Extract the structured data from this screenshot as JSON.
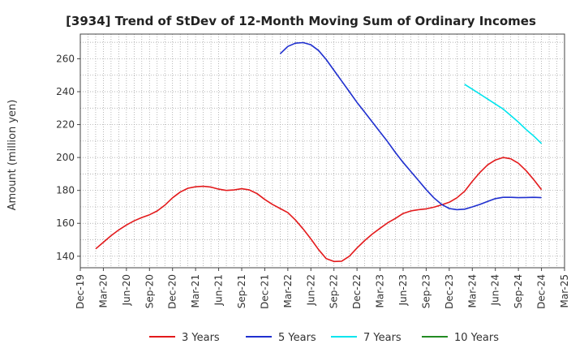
{
  "chart_data": {
    "type": "line",
    "title": "[3934]  Trend of StDev of 12-Month Moving Sum of Ordinary Incomes",
    "ylabel": "Amount (million yen)",
    "xlabel": "",
    "ylim": [
      133,
      275
    ],
    "yticks": [
      140,
      160,
      180,
      200,
      220,
      240,
      260
    ],
    "xlim": [
      "2019-12",
      "2025-03"
    ],
    "xticks": [
      "Dec-19",
      "Mar-20",
      "Jun-20",
      "Sep-20",
      "Dec-20",
      "Mar-21",
      "Jun-21",
      "Sep-21",
      "Dec-21",
      "Mar-22",
      "Jun-22",
      "Sep-22",
      "Dec-22",
      "Mar-23",
      "Jun-23",
      "Sep-23",
      "Dec-23",
      "Mar-24",
      "Jun-24",
      "Sep-24",
      "Dec-24",
      "Mar-25"
    ],
    "grid": true,
    "legend_position": "bottom",
    "series": [
      {
        "name": "3 Years",
        "color": "#e31a1c",
        "x": [
          "2020-02",
          "2020-03",
          "2020-04",
          "2020-05",
          "2020-06",
          "2020-07",
          "2020-08",
          "2020-09",
          "2020-10",
          "2020-11",
          "2020-12",
          "2021-01",
          "2021-02",
          "2021-03",
          "2021-04",
          "2021-05",
          "2021-06",
          "2021-07",
          "2021-08",
          "2021-09",
          "2021-10",
          "2021-11",
          "2021-12",
          "2022-01",
          "2022-02",
          "2022-03",
          "2022-04",
          "2022-05",
          "2022-06",
          "2022-07",
          "2022-08",
          "2022-09",
          "2022-10",
          "2022-11",
          "2022-12",
          "2023-01",
          "2023-02",
          "2023-03",
          "2023-04",
          "2023-05",
          "2023-06",
          "2023-07",
          "2023-08",
          "2023-09",
          "2023-10",
          "2023-11",
          "2023-12",
          "2024-01",
          "2024-02",
          "2024-03",
          "2024-04",
          "2024-05",
          "2024-06",
          "2024-07",
          "2024-08",
          "2024-09",
          "2024-10",
          "2024-11",
          "2024-12"
        ],
        "y": [
          144.5,
          148.5,
          152.5,
          156,
          159,
          161.5,
          163.5,
          165.2,
          167.5,
          171,
          175.5,
          179,
          181.3,
          182.2,
          182.5,
          182,
          180.8,
          180,
          180.3,
          181,
          180.3,
          178,
          174.5,
          171.5,
          169,
          166.5,
          162,
          156.5,
          150.5,
          144,
          138.5,
          136.8,
          137,
          140,
          145,
          149.5,
          153.5,
          157,
          160.3,
          163,
          166,
          167.5,
          168.3,
          168.8,
          169.8,
          171.2,
          172.8,
          175.5,
          179.5,
          185.5,
          191,
          195.5,
          198.5,
          200,
          199.2,
          196.5,
          192,
          186.5,
          180.5
        ]
      },
      {
        "name": "5 Years",
        "color": "#1f2fcf",
        "x": [
          "2022-02",
          "2022-03",
          "2022-04",
          "2022-05",
          "2022-06",
          "2022-07",
          "2022-08",
          "2022-09",
          "2022-10",
          "2022-11",
          "2022-12",
          "2023-01",
          "2023-02",
          "2023-03",
          "2023-04",
          "2023-05",
          "2023-06",
          "2023-07",
          "2023-08",
          "2023-09",
          "2023-10",
          "2023-11",
          "2023-12",
          "2024-01",
          "2024-02",
          "2024-03",
          "2024-04",
          "2024-05",
          "2024-06",
          "2024-07",
          "2024-08",
          "2024-09",
          "2024-10",
          "2024-11",
          "2024-12"
        ],
        "y": [
          263,
          267.5,
          269.5,
          269.8,
          268.5,
          265,
          259.5,
          253,
          246.5,
          240,
          233.5,
          227.5,
          221.5,
          215.5,
          209.5,
          203,
          197,
          191.5,
          186,
          180.5,
          175.5,
          171.5,
          169,
          168.3,
          168.6,
          170,
          171.5,
          173.3,
          175,
          175.8,
          175.8,
          175.6,
          175.7,
          175.8,
          175.6
        ]
      },
      {
        "name": "7 Years",
        "color": "#00e5ee",
        "x": [
          "2024-02",
          "2024-03",
          "2024-04",
          "2024-05",
          "2024-06",
          "2024-07",
          "2024-08",
          "2024-09",
          "2024-10",
          "2024-11",
          "2024-12"
        ],
        "y": [
          244.5,
          241.5,
          238.5,
          235.5,
          232.5,
          229.5,
          225.5,
          221.5,
          217,
          213,
          208.5
        ]
      },
      {
        "name": "10 Years",
        "color": "#228b22",
        "x": [],
        "y": []
      }
    ]
  }
}
